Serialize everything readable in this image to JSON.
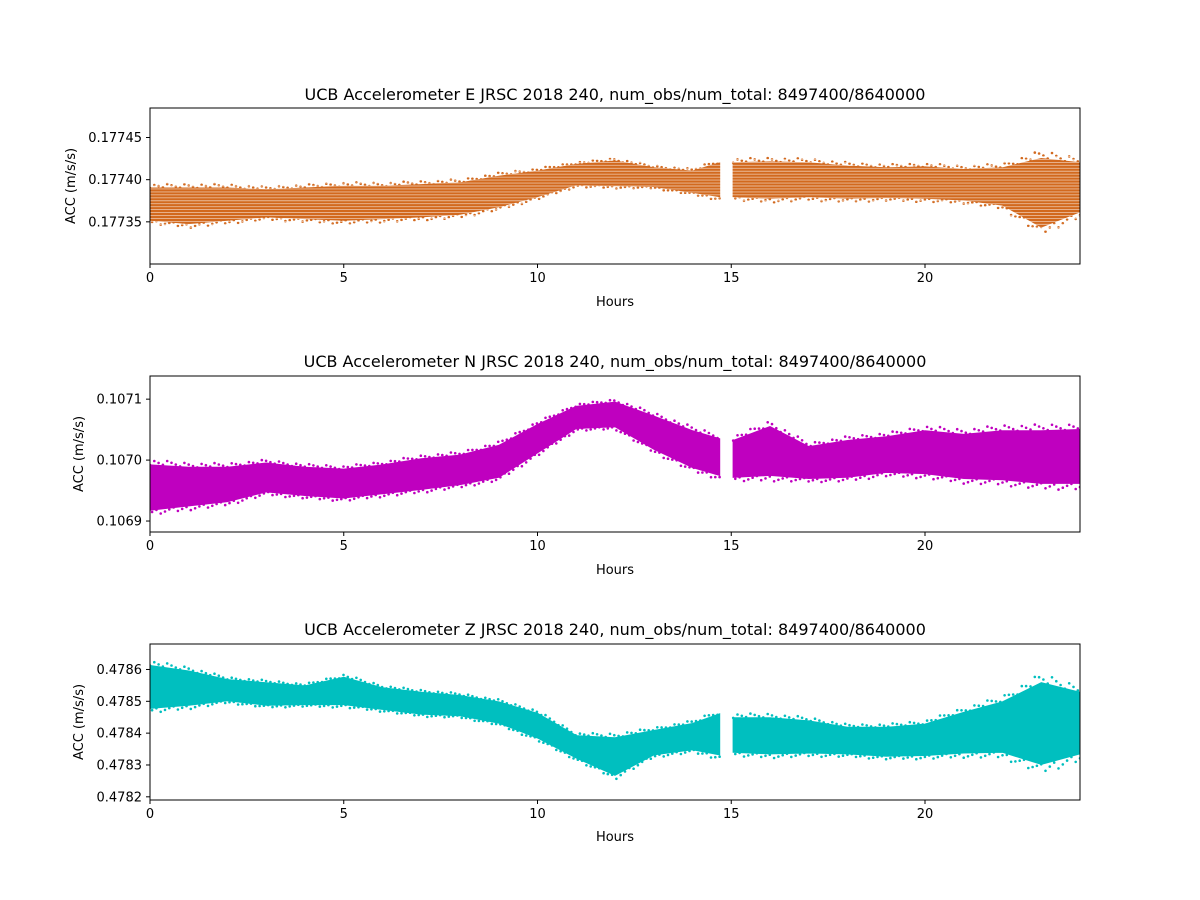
{
  "chart_data": [
    {
      "type": "scatter",
      "title": "UCB Accelerometer E JRSC 2018 240, num_obs/num_total: 8497400/8640000",
      "xlabel": "Hours",
      "ylabel": "ACC (m/s/s)",
      "xlim": [
        0,
        24
      ],
      "ylim": [
        0.1773,
        0.177485
      ],
      "xticks": [
        0,
        5,
        10,
        15,
        20
      ],
      "yticks": [
        0.17735,
        0.1774,
        0.17745
      ],
      "ytick_labels": [
        "0.17735",
        "0.17740",
        "0.17745"
      ],
      "color": "#d2691e",
      "gap": [
        14.7,
        15.05
      ],
      "series": [
        {
          "x": [
            0,
            1,
            2,
            3,
            4,
            5,
            6,
            7,
            8,
            9,
            10,
            11,
            12,
            13,
            14,
            14.7,
            15.05,
            16,
            17,
            18,
            19,
            20,
            21,
            22,
            23,
            24
          ],
          "center": [
            0.17737,
            0.17737,
            0.17737,
            0.177372,
            0.177372,
            0.177373,
            0.177374,
            0.177376,
            0.177378,
            0.177385,
            0.177394,
            0.177405,
            0.177405,
            0.177403,
            0.177403,
            0.177403,
            0.177402,
            0.177401,
            0.177399,
            0.177399,
            0.177398,
            0.177398,
            0.177396,
            0.177393,
            0.177387,
            0.17739
          ],
          "low": [
            0.177352,
            0.177348,
            0.177352,
            0.177356,
            0.177354,
            0.177352,
            0.177354,
            0.177356,
            0.177359,
            0.177368,
            0.17738,
            0.177394,
            0.177393,
            0.177392,
            0.177385,
            0.17738,
            0.17738,
            0.177378,
            0.17738,
            0.177378,
            0.177379,
            0.177378,
            0.177376,
            0.17737,
            0.177344,
            0.177362
          ],
          "high": [
            0.17739,
            0.17739,
            0.17739,
            0.177388,
            0.17739,
            0.177392,
            0.177392,
            0.177394,
            0.177396,
            0.177404,
            0.17741,
            0.177418,
            0.177422,
            0.177414,
            0.17741,
            0.17742,
            0.17742,
            0.177421,
            0.17742,
            0.177416,
            0.177414,
            0.177415,
            0.177412,
            0.177414,
            0.177425,
            0.17742
          ]
        }
      ]
    },
    {
      "type": "scatter",
      "title": "UCB Accelerometer N JRSC 2018 240, num_obs/num_total: 8497400/8640000",
      "xlabel": "Hours",
      "ylabel": "ACC (m/s/s)",
      "xlim": [
        0,
        24
      ],
      "ylim": [
        0.106882,
        0.107138
      ],
      "xticks": [
        0,
        5,
        10,
        15,
        20
      ],
      "yticks": [
        0.1069,
        0.107,
        0.1071
      ],
      "ytick_labels": [
        "0.1069",
        "0.1070",
        "0.1071"
      ],
      "color": "#bf00bf",
      "gap": [
        14.7,
        15.05
      ],
      "series": [
        {
          "x": [
            0,
            1,
            2,
            3,
            4,
            5,
            6,
            7,
            8,
            9,
            10,
            11,
            12,
            13,
            14,
            14.7,
            15.05,
            16,
            17,
            18,
            19,
            20,
            21,
            22,
            23,
            24
          ],
          "center": [
            0.106955,
            0.106957,
            0.10696,
            0.106972,
            0.106968,
            0.106962,
            0.10697,
            0.106978,
            0.106985,
            0.106998,
            0.107035,
            0.107072,
            0.107072,
            0.107045,
            0.107018,
            0.106997,
            0.107,
            0.107015,
            0.106993,
            0.106998,
            0.107008,
            0.107012,
            0.10701,
            0.10701,
            0.107006,
            0.107008
          ],
          "low": [
            0.106918,
            0.106925,
            0.106932,
            0.106948,
            0.106942,
            0.106938,
            0.106945,
            0.106952,
            0.10696,
            0.106972,
            0.107012,
            0.107052,
            0.107055,
            0.107018,
            0.106988,
            0.106975,
            0.106972,
            0.106975,
            0.10697,
            0.106972,
            0.10698,
            0.106978,
            0.10697,
            0.106968,
            0.106962,
            0.106962
          ],
          "high": [
            0.106992,
            0.106988,
            0.106988,
            0.106995,
            0.106988,
            0.106985,
            0.106992,
            0.107002,
            0.107008,
            0.107024,
            0.107058,
            0.107088,
            0.107095,
            0.107072,
            0.107048,
            0.107035,
            0.107032,
            0.107055,
            0.107022,
            0.107032,
            0.107038,
            0.107048,
            0.107042,
            0.107048,
            0.107048,
            0.10705
          ]
        }
      ]
    },
    {
      "type": "scatter",
      "title": "UCB Accelerometer Z JRSC 2018 240, num_obs/num_total: 8497400/8640000",
      "xlabel": "Hours",
      "ylabel": "ACC (m/s/s)",
      "xlim": [
        0,
        24
      ],
      "ylim": [
        0.47819,
        0.47868
      ],
      "xticks": [
        0,
        5,
        10,
        15,
        20
      ],
      "yticks": [
        0.4782,
        0.4783,
        0.4784,
        0.4785,
        0.4786
      ],
      "ytick_labels": [
        "0.4782",
        "0.4783",
        "0.4784",
        "0.4785",
        "0.4786"
      ],
      "color": "#00bfbf",
      "gap": [
        14.7,
        15.05
      ],
      "series": [
        {
          "x": [
            0,
            1,
            2,
            3,
            4,
            5,
            6,
            7,
            8,
            9,
            10,
            11,
            12,
            13,
            14,
            14.7,
            15.05,
            16,
            17,
            18,
            19,
            20,
            21,
            22,
            23,
            24
          ],
          "center": [
            0.478528,
            0.478535,
            0.478538,
            0.478525,
            0.478522,
            0.478522,
            0.478505,
            0.478492,
            0.478485,
            0.478465,
            0.47842,
            0.478362,
            0.478355,
            0.478372,
            0.478388,
            0.47839,
            0.478385,
            0.478395,
            0.478392,
            0.478375,
            0.478372,
            0.478385,
            0.478405,
            0.478418,
            0.478405,
            0.478418
          ],
          "low": [
            0.478478,
            0.478488,
            0.478502,
            0.478488,
            0.47849,
            0.47849,
            0.478475,
            0.47846,
            0.478455,
            0.478432,
            0.478385,
            0.478322,
            0.478268,
            0.478332,
            0.478348,
            0.478332,
            0.47834,
            0.478335,
            0.478338,
            0.478335,
            0.478328,
            0.47833,
            0.478338,
            0.47834,
            0.478302,
            0.478335
          ],
          "high": [
            0.478612,
            0.478595,
            0.478568,
            0.478558,
            0.478548,
            0.478575,
            0.478542,
            0.478528,
            0.478518,
            0.478498,
            0.478462,
            0.478392,
            0.478385,
            0.478408,
            0.47843,
            0.47846,
            0.478448,
            0.478448,
            0.478438,
            0.478418,
            0.478418,
            0.478428,
            0.478465,
            0.478498,
            0.478558,
            0.478528
          ]
        }
      ]
    }
  ]
}
